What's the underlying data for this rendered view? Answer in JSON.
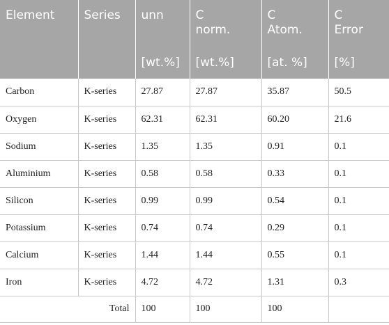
{
  "header": {
    "element": "Element",
    "series": "Series",
    "unn_line1": "unn",
    "cnorm_line1": "C",
    "cnorm_line2": "norm.",
    "catom_line1": "C",
    "catom_line2": "Atom.",
    "cerror_line1": "C",
    "cerror_line2": "Error",
    "unit_unn": "[wt.%]",
    "unit_cnorm": "[wt.%]",
    "unit_catom": "[at. %]",
    "unit_cerror": "[%]"
  },
  "rows": [
    {
      "element": "Carbon",
      "series": "K-series",
      "unn": "27.87",
      "cnorm": "27.87",
      "catom": "35.87",
      "cerror": "50.5"
    },
    {
      "element": "Oxygen",
      "series": "K-series",
      "unn": "62.31",
      "cnorm": "62.31",
      "catom": "60.20",
      "cerror": "21.6"
    },
    {
      "element": "Sodium",
      "series": "K-series",
      "unn": "1.35",
      "cnorm": "1.35",
      "catom": "0.91",
      "cerror": "0.1"
    },
    {
      "element": "Aluminium",
      "series": "K-series",
      "unn": "0.58",
      "cnorm": "0.58",
      "catom": "0.33",
      "cerror": "0.1"
    },
    {
      "element": "Silicon",
      "series": "K-series",
      "unn": "0.99",
      "cnorm": "0.99",
      "catom": "0.54",
      "cerror": "0.1"
    },
    {
      "element": "Potassium",
      "series": "K-series",
      "unn": "0.74",
      "cnorm": "0.74",
      "catom": "0.29",
      "cerror": "0.1"
    },
    {
      "element": "Calcium",
      "series": "K-series",
      "unn": "1.44",
      "cnorm": "1.44",
      "catom": "0.55",
      "cerror": "0.1"
    },
    {
      "element": "Iron",
      "series": "K-series",
      "unn": "4.72",
      "cnorm": "4.72",
      "catom": "1.31",
      "cerror": "0.3"
    }
  ],
  "total": {
    "label": "Total",
    "unn": "100",
    "cnorm": "100",
    "catom": "100"
  }
}
